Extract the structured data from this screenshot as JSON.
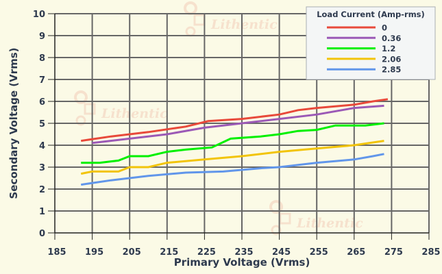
{
  "watermark": "Lithentic",
  "chart_data": {
    "type": "line",
    "title": "",
    "xlabel": "Primary Voltage (Vrms)",
    "ylabel": "Secondary Voltage (Vrms)",
    "xlim": [
      185,
      285
    ],
    "ylim": [
      0,
      10
    ],
    "xticks": [
      185,
      195,
      205,
      215,
      225,
      235,
      245,
      255,
      265,
      275,
      285
    ],
    "yticks": [
      0,
      1,
      2,
      3,
      4,
      5,
      6,
      7,
      8,
      9,
      10
    ],
    "grid": true,
    "legend": {
      "title": "Load Current (Amp-rms)",
      "placement": "top-right"
    },
    "series": [
      {
        "name": "0",
        "color": "#e8493a",
        "points": [
          [
            192,
            4.2
          ],
          [
            200,
            4.4
          ],
          [
            210,
            4.6
          ],
          [
            220,
            4.85
          ],
          [
            226,
            5.1
          ],
          [
            235,
            5.2
          ],
          [
            245,
            5.4
          ],
          [
            250,
            5.6
          ],
          [
            255,
            5.7
          ],
          [
            265,
            5.85
          ],
          [
            270,
            6.0
          ],
          [
            274,
            6.1
          ]
        ]
      },
      {
        "name": "0.36",
        "color": "#9b59b6",
        "points": [
          [
            195,
            4.1
          ],
          [
            205,
            4.3
          ],
          [
            215,
            4.5
          ],
          [
            225,
            4.8
          ],
          [
            235,
            5.0
          ],
          [
            245,
            5.2
          ],
          [
            255,
            5.4
          ],
          [
            265,
            5.7
          ],
          [
            273,
            5.8
          ]
        ]
      },
      {
        "name": "1.2",
        "color": "#00f000",
        "points": [
          [
            192,
            3.2
          ],
          [
            197,
            3.2
          ],
          [
            202,
            3.3
          ],
          [
            205,
            3.5
          ],
          [
            210,
            3.5
          ],
          [
            215,
            3.7
          ],
          [
            220,
            3.8
          ],
          [
            227,
            3.9
          ],
          [
            232,
            4.3
          ],
          [
            240,
            4.4
          ],
          [
            245,
            4.5
          ],
          [
            250,
            4.65
          ],
          [
            255,
            4.7
          ],
          [
            260,
            4.9
          ],
          [
            268,
            4.9
          ],
          [
            273,
            5.0
          ]
        ]
      },
      {
        "name": "2.06",
        "color": "#f2c40a",
        "points": [
          [
            192,
            2.7
          ],
          [
            195,
            2.8
          ],
          [
            202,
            2.8
          ],
          [
            205,
            3.0
          ],
          [
            210,
            3.0
          ],
          [
            215,
            3.2
          ],
          [
            225,
            3.35
          ],
          [
            235,
            3.5
          ],
          [
            245,
            3.7
          ],
          [
            255,
            3.85
          ],
          [
            265,
            4.0
          ],
          [
            273,
            4.2
          ]
        ]
      },
      {
        "name": "2.85",
        "color": "#6196ea",
        "points": [
          [
            192,
            2.2
          ],
          [
            200,
            2.4
          ],
          [
            210,
            2.6
          ],
          [
            220,
            2.75
          ],
          [
            230,
            2.8
          ],
          [
            240,
            2.95
          ],
          [
            245,
            3.0
          ],
          [
            255,
            3.2
          ],
          [
            265,
            3.35
          ],
          [
            270,
            3.5
          ],
          [
            273,
            3.6
          ]
        ]
      }
    ]
  }
}
